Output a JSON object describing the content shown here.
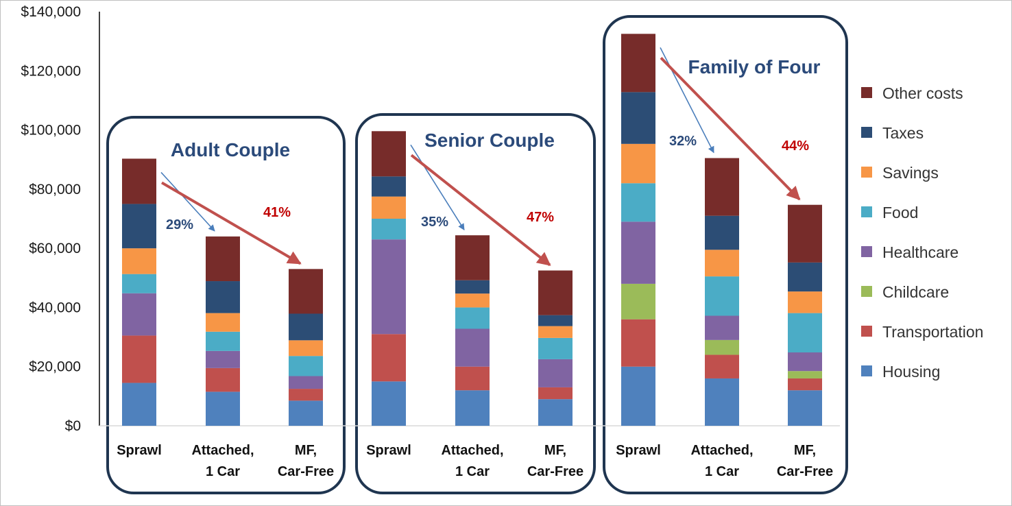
{
  "chart_data": {
    "type": "bar",
    "stacked": true,
    "yticks": [
      "$0",
      "$20,000",
      "$40,000",
      "$60,000",
      "$80,000",
      "$100,000",
      "$120,000",
      "$140,000"
    ],
    "ylim": [
      0,
      140000
    ],
    "legend_position": "right",
    "categories_per_group": [
      [
        "Sprawl"
      ],
      [
        "Attached,",
        "1 Car"
      ],
      [
        "MF,",
        "Car-Free"
      ]
    ],
    "groups": [
      {
        "title": "Adult Couple",
        "bars": [
          {
            "Housing": 14500,
            "Transportation": 16000,
            "Childcare": 0,
            "Healthcare": 14300,
            "Food": 6500,
            "Savings": 8700,
            "Taxes": 15000,
            "Other costs": 15300
          },
          {
            "Housing": 11500,
            "Transportation": 8000,
            "Childcare": 0,
            "Healthcare": 5800,
            "Food": 6500,
            "Savings": 6300,
            "Taxes": 10800,
            "Other costs": 15100
          },
          {
            "Housing": 8500,
            "Transportation": 4000,
            "Childcare": 0,
            "Healthcare": 4300,
            "Food": 6800,
            "Savings": 5300,
            "Taxes": 9000,
            "Other costs": 15100
          }
        ],
        "annotations": [
          {
            "text": "29%",
            "color": "#2b4a7a",
            "from_bar": 0,
            "to_bar": 1
          },
          {
            "text": "41%",
            "color": "#c00000",
            "from_bar": 0,
            "to_bar": 2
          }
        ]
      },
      {
        "title": "Senior Couple",
        "bars": [
          {
            "Housing": 15000,
            "Transportation": 16000,
            "Childcare": 0,
            "Healthcare": 32000,
            "Food": 7000,
            "Savings": 7500,
            "Taxes": 6800,
            "Other costs": 15300
          },
          {
            "Housing": 12000,
            "Transportation": 8000,
            "Childcare": 0,
            "Healthcare": 12800,
            "Food": 7200,
            "Savings": 4700,
            "Taxes": 4500,
            "Other costs": 15200
          },
          {
            "Housing": 9000,
            "Transportation": 4000,
            "Childcare": 0,
            "Healthcare": 9500,
            "Food": 7200,
            "Savings": 4000,
            "Taxes": 3700,
            "Other costs": 15100
          }
        ],
        "annotations": [
          {
            "text": "35%",
            "color": "#2b4a7a",
            "from_bar": 0,
            "to_bar": 1
          },
          {
            "text": "47%",
            "color": "#c00000",
            "from_bar": 0,
            "to_bar": 2
          }
        ]
      },
      {
        "title": "Family of Four",
        "bars": [
          {
            "Housing": 20000,
            "Transportation": 16000,
            "Childcare": 12000,
            "Healthcare": 21000,
            "Food": 13000,
            "Savings": 13300,
            "Taxes": 17500,
            "Other costs": 19700
          },
          {
            "Housing": 16000,
            "Transportation": 8000,
            "Childcare": 5000,
            "Healthcare": 8200,
            "Food": 13300,
            "Savings": 9000,
            "Taxes": 11500,
            "Other costs": 19500
          },
          {
            "Housing": 12000,
            "Transportation": 4000,
            "Childcare": 2500,
            "Healthcare": 6300,
            "Food": 13300,
            "Savings": 7300,
            "Taxes": 9800,
            "Other costs": 19500
          }
        ],
        "annotations": [
          {
            "text": "32%",
            "color": "#2b4a7a",
            "from_bar": 0,
            "to_bar": 1
          },
          {
            "text": "44%",
            "color": "#c00000",
            "from_bar": 0,
            "to_bar": 2
          }
        ]
      }
    ],
    "series": [
      {
        "name": "Housing",
        "color": "#4f81bd"
      },
      {
        "name": "Transportation",
        "color": "#c0504d"
      },
      {
        "name": "Childcare",
        "color": "#9bbb59"
      },
      {
        "name": "Healthcare",
        "color": "#8064a2"
      },
      {
        "name": "Food",
        "color": "#4bacc6"
      },
      {
        "name": "Savings",
        "color": "#f79646"
      },
      {
        "name": "Taxes",
        "color": "#2c4d75"
      },
      {
        "name": "Other costs",
        "color": "#772c2a"
      }
    ],
    "legend_order": [
      "Other costs",
      "Taxes",
      "Savings",
      "Food",
      "Healthcare",
      "Childcare",
      "Transportation",
      "Housing"
    ],
    "colors": {
      "group_box": "#1f3550",
      "arrow_blue": "#4a7ebb",
      "arrow_red": "#c0504d",
      "axis": "#000000",
      "frame": "#bfbfbf"
    }
  }
}
